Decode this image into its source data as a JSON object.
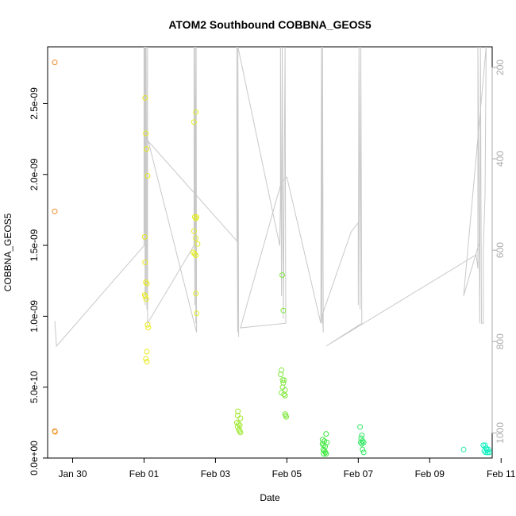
{
  "chart_data": {
    "type": "scatter",
    "title": "ATOM2 Southbound COBBNA_GEOS5",
    "xlabel": "Date",
    "ylabel": "COBBNA_GEOS5",
    "x_ticks": [
      "Jan 30",
      "Feb 01",
      "Feb 03",
      "Feb 05",
      "Feb 07",
      "Feb 09",
      "Feb 11"
    ],
    "y_ticks": [
      "0.0e+00",
      "5.0e-10",
      "1.0e-09",
      "1.5e-09",
      "2.0e-09",
      "2.5e-09"
    ],
    "y_right_ticks": [
      "200",
      "400",
      "600",
      "800",
      "1000"
    ],
    "x_range_days": [
      -1.2,
      11.25
    ],
    "x_tick_days": [
      -0.5,
      1.5,
      3.5,
      5.5,
      7.5,
      9.5,
      11.5
    ],
    "ylim": [
      0,
      2.9e-09
    ],
    "y_tick_values": [
      0,
      5e-10,
      1e-09,
      1.5e-09,
      2e-09,
      2.5e-09
    ],
    "y_right_lim": [
      1055,
      155
    ],
    "y_right_tick_values": [
      200,
      400,
      600,
      800,
      1000
    ],
    "right_axis_color": "#aaaaaa",
    "pressure_line_color": "#c8c8c8",
    "points": [
      {
        "d": -1.0,
        "v": 2.79e-09,
        "c": "#f08a2a"
      },
      {
        "d": -1.0,
        "v": 1.74e-09,
        "c": "#f08a2a"
      },
      {
        "d": -1.0,
        "v": 1.9e-10,
        "c": "#f08a2a"
      },
      {
        "d": -0.99,
        "v": 1.85e-10,
        "c": "#f0a030"
      },
      {
        "d": 1.53,
        "v": 2.54e-09,
        "c": "#e8e820"
      },
      {
        "d": 1.55,
        "v": 2.29e-09,
        "c": "#e8e820"
      },
      {
        "d": 1.57,
        "v": 2.18e-09,
        "c": "#e8e820"
      },
      {
        "d": 1.6,
        "v": 1.99e-09,
        "c": "#e8e820"
      },
      {
        "d": 1.52,
        "v": 1.56e-09,
        "c": "#e8e820"
      },
      {
        "d": 1.53,
        "v": 1.38e-09,
        "c": "#e8e820"
      },
      {
        "d": 1.55,
        "v": 1.24e-09,
        "c": "#e8e820"
      },
      {
        "d": 1.58,
        "v": 1.23e-09,
        "c": "#e8e820"
      },
      {
        "d": 1.52,
        "v": 1.15e-09,
        "c": "#e8e820"
      },
      {
        "d": 1.54,
        "v": 1.14e-09,
        "c": "#e8e820"
      },
      {
        "d": 1.56,
        "v": 1.12e-09,
        "c": "#e8e820"
      },
      {
        "d": 1.6,
        "v": 9.4e-10,
        "c": "#e8e820"
      },
      {
        "d": 1.62,
        "v": 9.2e-10,
        "c": "#e8e820"
      },
      {
        "d": 1.58,
        "v": 7.5e-10,
        "c": "#e8e820"
      },
      {
        "d": 1.55,
        "v": 7e-10,
        "c": "#e8e820"
      },
      {
        "d": 1.58,
        "v": 6.8e-10,
        "c": "#e8e820"
      },
      {
        "d": 2.95,
        "v": 2.44e-09,
        "c": "#e4ee20"
      },
      {
        "d": 2.9,
        "v": 2.37e-09,
        "c": "#e4ee20"
      },
      {
        "d": 2.92,
        "v": 1.7e-09,
        "c": "#e4ee20"
      },
      {
        "d": 2.95,
        "v": 1.69e-09,
        "c": "#e4ee20"
      },
      {
        "d": 2.97,
        "v": 1.7e-09,
        "c": "#e4ee20"
      },
      {
        "d": 2.9,
        "v": 1.6e-09,
        "c": "#e4ee20"
      },
      {
        "d": 2.95,
        "v": 1.55e-09,
        "c": "#e4ee20"
      },
      {
        "d": 3.0,
        "v": 1.51e-09,
        "c": "#e4ee20"
      },
      {
        "d": 2.88,
        "v": 1.45e-09,
        "c": "#e4ee20"
      },
      {
        "d": 2.92,
        "v": 1.44e-09,
        "c": "#e4ee20"
      },
      {
        "d": 2.95,
        "v": 1.43e-09,
        "c": "#e4ee20"
      },
      {
        "d": 2.95,
        "v": 1.16e-09,
        "c": "#e4ee20"
      },
      {
        "d": 2.97,
        "v": 1.02e-09,
        "c": "#e4ee20"
      },
      {
        "d": 4.13,
        "v": 3.3e-10,
        "c": "#a0e830"
      },
      {
        "d": 4.12,
        "v": 3e-10,
        "c": "#a0e830"
      },
      {
        "d": 4.2,
        "v": 2.8e-10,
        "c": "#a0e830"
      },
      {
        "d": 4.1,
        "v": 2.5e-10,
        "c": "#a0e830"
      },
      {
        "d": 4.15,
        "v": 2.4e-10,
        "c": "#a0e830"
      },
      {
        "d": 4.18,
        "v": 2.3e-10,
        "c": "#a0e830"
      },
      {
        "d": 4.12,
        "v": 2.2e-10,
        "c": "#a0e830"
      },
      {
        "d": 4.16,
        "v": 2e-10,
        "c": "#a0e830"
      },
      {
        "d": 4.18,
        "v": 1.9e-10,
        "c": "#a0e830"
      },
      {
        "d": 4.2,
        "v": 1.8e-10,
        "c": "#a0e830"
      },
      {
        "d": 5.37,
        "v": 1.29e-09,
        "c": "#80e840"
      },
      {
        "d": 5.4,
        "v": 1.04e-09,
        "c": "#80e840"
      },
      {
        "d": 5.35,
        "v": 6.2e-10,
        "c": "#80e840"
      },
      {
        "d": 5.33,
        "v": 5.9e-10,
        "c": "#80e840"
      },
      {
        "d": 5.38,
        "v": 5.5e-10,
        "c": "#80e840"
      },
      {
        "d": 5.42,
        "v": 5.5e-10,
        "c": "#80e840"
      },
      {
        "d": 5.4,
        "v": 5.3e-10,
        "c": "#80e840"
      },
      {
        "d": 5.38,
        "v": 5e-10,
        "c": "#80e840"
      },
      {
        "d": 5.45,
        "v": 4.8e-10,
        "c": "#80e840"
      },
      {
        "d": 5.35,
        "v": 4.6e-10,
        "c": "#80e840"
      },
      {
        "d": 5.42,
        "v": 4.5e-10,
        "c": "#80e840"
      },
      {
        "d": 5.45,
        "v": 4.4e-10,
        "c": "#80e840"
      },
      {
        "d": 5.45,
        "v": 3.1e-10,
        "c": "#80e840"
      },
      {
        "d": 5.47,
        "v": 3e-10,
        "c": "#80e840"
      },
      {
        "d": 5.48,
        "v": 2.9e-10,
        "c": "#80e840"
      },
      {
        "d": 6.5,
        "v": 1.3e-10,
        "c": "#40e840"
      },
      {
        "d": 6.55,
        "v": 1.2e-10,
        "c": "#40e840"
      },
      {
        "d": 6.6,
        "v": 1.7e-10,
        "c": "#40e840"
      },
      {
        "d": 6.5,
        "v": 1e-10,
        "c": "#40e840"
      },
      {
        "d": 6.53,
        "v": 9e-11,
        "c": "#40e840"
      },
      {
        "d": 6.57,
        "v": 8e-11,
        "c": "#40e840"
      },
      {
        "d": 6.62,
        "v": 1.1e-10,
        "c": "#40e840"
      },
      {
        "d": 6.52,
        "v": 6e-11,
        "c": "#40e840"
      },
      {
        "d": 6.55,
        "v": 5e-11,
        "c": "#40e840"
      },
      {
        "d": 6.58,
        "v": 4e-11,
        "c": "#40e840"
      },
      {
        "d": 6.53,
        "v": 3e-11,
        "c": "#40e840"
      },
      {
        "d": 6.6,
        "v": 3e-11,
        "c": "#40e840"
      },
      {
        "d": 7.55,
        "v": 2.2e-10,
        "c": "#30e860"
      },
      {
        "d": 7.6,
        "v": 1.6e-10,
        "c": "#30e860"
      },
      {
        "d": 7.58,
        "v": 1.4e-10,
        "c": "#30e860"
      },
      {
        "d": 7.62,
        "v": 1.2e-10,
        "c": "#30e860"
      },
      {
        "d": 7.57,
        "v": 1.1e-10,
        "c": "#30e860"
      },
      {
        "d": 7.65,
        "v": 1.1e-10,
        "c": "#30e860"
      },
      {
        "d": 7.6,
        "v": 1e-10,
        "c": "#30e860"
      },
      {
        "d": 7.62,
        "v": 6e-11,
        "c": "#30e860"
      },
      {
        "d": 7.65,
        "v": 4e-11,
        "c": "#30e860"
      },
      {
        "d": 10.45,
        "v": 6e-11,
        "c": "#20e8a0"
      },
      {
        "d": 11.0,
        "v": 9e-11,
        "c": "#10f0c0"
      },
      {
        "d": 11.05,
        "v": 9e-11,
        "c": "#10f0c0"
      },
      {
        "d": 11.08,
        "v": 7e-11,
        "c": "#10f0c0"
      },
      {
        "d": 11.1,
        "v": 6e-11,
        "c": "#10f0c0"
      },
      {
        "d": 11.03,
        "v": 5e-11,
        "c": "#10f0c0"
      },
      {
        "d": 11.07,
        "v": 4e-11,
        "c": "#10f0c0"
      },
      {
        "d": 11.12,
        "v": 4e-11,
        "c": "#10f0c0"
      },
      {
        "d": 11.15,
        "v": 6e-11,
        "c": "#10f0c0"
      },
      {
        "d": 11.17,
        "v": 4e-11,
        "c": "#10f0c0"
      }
    ],
    "pressure_path": [
      [
        -1.0,
        755
      ],
      [
        -0.95,
        810
      ],
      [
        1.5,
        590
      ],
      [
        1.5,
        155
      ],
      [
        1.51,
        560
      ],
      [
        1.52,
        155
      ],
      [
        1.53,
        720
      ],
      [
        1.54,
        155
      ],
      [
        1.55,
        700
      ],
      [
        1.56,
        155
      ],
      [
        1.58,
        730
      ],
      [
        1.6,
        155
      ],
      [
        1.6,
        760
      ],
      [
        2.9,
        590
      ],
      [
        2.9,
        155
      ],
      [
        2.92,
        720
      ],
      [
        2.93,
        155
      ],
      [
        2.95,
        760
      ],
      [
        2.96,
        155
      ],
      [
        2.97,
        780
      ],
      [
        1.55,
        340
      ],
      [
        1.6,
        360
      ],
      [
        4.1,
        580
      ],
      [
        4.1,
        155
      ],
      [
        4.12,
        780
      ],
      [
        4.13,
        155
      ],
      [
        4.15,
        790
      ],
      [
        4.13,
        520
      ],
      [
        4.13,
        155
      ],
      [
        5.3,
        590
      ],
      [
        5.32,
        490
      ],
      [
        5.32,
        155
      ],
      [
        5.35,
        700
      ],
      [
        5.37,
        155
      ],
      [
        5.4,
        750
      ],
      [
        5.45,
        155
      ],
      [
        5.47,
        760
      ],
      [
        4.2,
        770
      ],
      [
        5.35,
        450
      ],
      [
        5.5,
        440
      ],
      [
        6.45,
        760
      ],
      [
        6.47,
        155
      ],
      [
        6.48,
        760
      ],
      [
        6.5,
        155
      ],
      [
        6.52,
        780
      ],
      [
        6.5,
        740
      ],
      [
        7.3,
        560
      ],
      [
        7.5,
        540
      ],
      [
        7.5,
        720
      ],
      [
        7.52,
        155
      ],
      [
        7.55,
        730
      ],
      [
        7.57,
        155
      ],
      [
        7.6,
        760
      ],
      [
        6.6,
        810
      ],
      [
        10.8,
        610
      ],
      [
        10.85,
        640
      ],
      [
        10.85,
        155
      ],
      [
        10.9,
        760
      ],
      [
        10.92,
        155
      ],
      [
        10.95,
        760
      ],
      [
        11.0,
        760
      ],
      [
        11.0,
        600
      ],
      [
        11.05,
        480
      ],
      [
        11.08,
        155
      ],
      [
        10.45,
        700
      ],
      [
        10.9,
        580
      ]
    ]
  }
}
